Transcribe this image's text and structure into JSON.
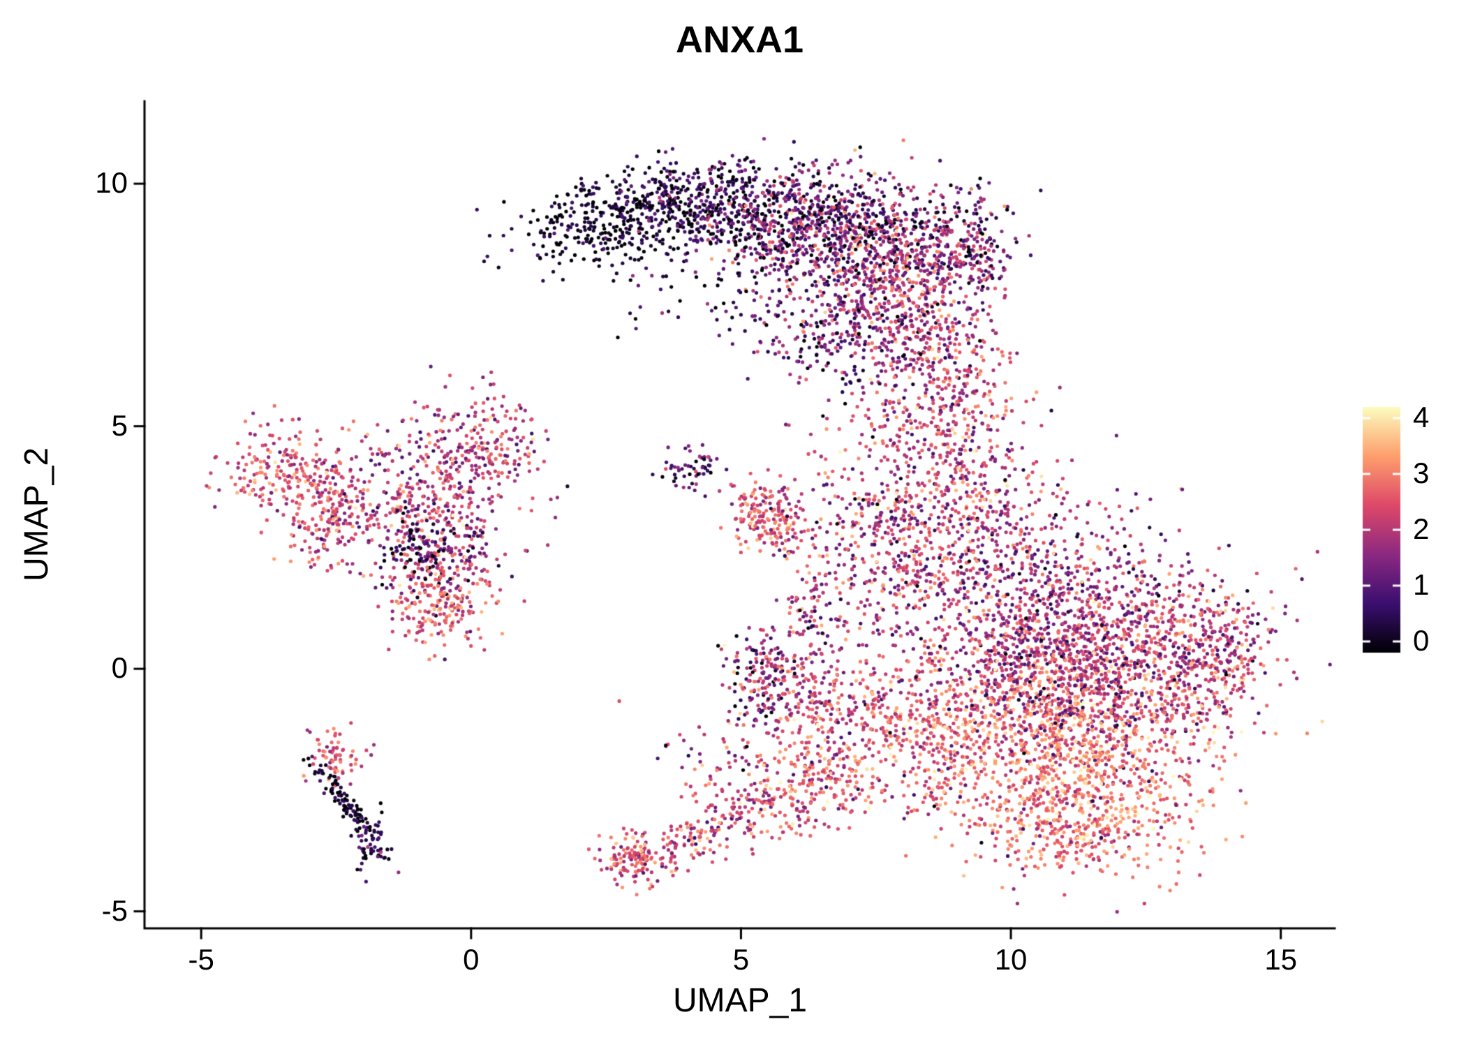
{
  "chart_data": {
    "type": "scatter",
    "title": "ANXA1",
    "xlabel": "UMAP_1",
    "ylabel": "UMAP_2",
    "xlim": [
      -6.05,
      16.0
    ],
    "ylim": [
      -5.35,
      11.7
    ],
    "x_ticks": [
      -5,
      0,
      5,
      10,
      15
    ],
    "y_ticks": [
      -5,
      0,
      5,
      10
    ],
    "grid": false,
    "legend_position": "right",
    "background_color": "#ffffff",
    "axis_color": "#000000",
    "point_color_scale": {
      "name": "magma",
      "stops": [
        "#000004",
        "#3b0f70",
        "#8c2981",
        "#de4968",
        "#fe9f6d",
        "#fcfdbf"
      ]
    },
    "colorbar": {
      "ticks": [
        0,
        1,
        2,
        3,
        4
      ],
      "min_label": 0,
      "max_label": 4
    },
    "expression_range": [
      0,
      4
    ],
    "clusters_schema": [
      "n",
      "cx",
      "cy",
      "sx",
      "sy",
      "rot_deg",
      "expr_mean",
      "expr_sd"
    ],
    "clusters": [
      [
        260,
        2.4,
        9.2,
        0.75,
        0.4,
        15,
        0.25,
        0.35
      ],
      [
        380,
        4.1,
        9.6,
        0.95,
        0.45,
        0,
        0.5,
        0.6
      ],
      [
        520,
        5.9,
        9.3,
        1.0,
        0.55,
        0,
        1.2,
        0.9
      ],
      [
        560,
        7.3,
        8.6,
        0.95,
        0.8,
        0,
        1.8,
        0.9
      ],
      [
        160,
        7.4,
        9.1,
        1.2,
        0.55,
        0,
        0.4,
        0.5
      ],
      [
        420,
        8.3,
        7.5,
        0.7,
        0.9,
        0,
        2.2,
        0.8
      ],
      [
        260,
        7.0,
        6.9,
        0.8,
        0.65,
        0,
        1.5,
        0.9
      ],
      [
        90,
        4.6,
        7.9,
        1.1,
        0.65,
        0,
        0.5,
        0.6
      ],
      [
        130,
        9.25,
        8.7,
        0.35,
        0.55,
        0,
        1.3,
        0.8
      ],
      [
        180,
        -3.5,
        4.1,
        0.5,
        0.45,
        0,
        2.6,
        0.6
      ],
      [
        200,
        -2.6,
        3.2,
        0.45,
        0.55,
        0,
        2.4,
        0.7
      ],
      [
        360,
        -0.8,
        3.6,
        0.85,
        0.8,
        0,
        2.2,
        0.7
      ],
      [
        150,
        0.3,
        4.6,
        0.5,
        0.5,
        0,
        2.3,
        0.7
      ],
      [
        200,
        -0.5,
        2.2,
        0.5,
        0.6,
        0,
        1.8,
        0.9
      ],
      [
        160,
        -0.55,
        1.3,
        0.45,
        0.45,
        0,
        2.8,
        0.6
      ],
      [
        60,
        -1.05,
        2.5,
        0.3,
        0.35,
        0,
        0.5,
        0.5
      ],
      [
        70,
        -2.5,
        -1.8,
        0.3,
        0.3,
        0,
        2.6,
        0.5
      ],
      [
        95,
        -2.3,
        -2.8,
        0.5,
        0.09,
        -56,
        0.3,
        0.3
      ],
      [
        55,
        -1.85,
        -3.6,
        0.16,
        0.28,
        0,
        0.8,
        0.6
      ],
      [
        55,
        4.05,
        4.15,
        0.33,
        0.22,
        0,
        1.0,
        0.7
      ],
      [
        125,
        5.35,
        3.3,
        0.3,
        0.42,
        0,
        2.7,
        0.6
      ],
      [
        65,
        5.75,
        2.85,
        0.3,
        0.3,
        0,
        2.6,
        0.7
      ],
      [
        300,
        8.7,
        4.6,
        0.8,
        0.95,
        0,
        2.5,
        0.7
      ],
      [
        260,
        9.5,
        3.2,
        0.85,
        0.8,
        0,
        2.3,
        0.8
      ],
      [
        260,
        7.9,
        2.0,
        0.7,
        0.9,
        0,
        2.3,
        0.8
      ],
      [
        700,
        10.5,
        1.2,
        1.2,
        0.9,
        0,
        2.1,
        0.8
      ],
      [
        620,
        12.7,
        0.3,
        1.0,
        0.95,
        0,
        2.3,
        0.8
      ],
      [
        700,
        10.8,
        -0.5,
        1.25,
        0.8,
        0,
        2.5,
        0.8
      ],
      [
        820,
        11.2,
        -2.2,
        1.25,
        0.9,
        0,
        3.1,
        0.6
      ],
      [
        160,
        11.0,
        -3.5,
        0.85,
        0.35,
        0,
        3.0,
        0.6
      ],
      [
        360,
        8.6,
        -1.4,
        0.85,
        0.75,
        0,
        2.7,
        0.7
      ],
      [
        130,
        14.0,
        0.3,
        0.4,
        0.55,
        0,
        2.2,
        0.9
      ],
      [
        220,
        10.6,
        0.3,
        1.9,
        1.5,
        0,
        1.0,
        0.5
      ],
      [
        150,
        5.35,
        -0.15,
        0.35,
        0.5,
        0,
        1.7,
        1.0
      ],
      [
        90,
        6.05,
        -0.55,
        0.45,
        0.4,
        0,
        2.4,
        0.8
      ],
      [
        120,
        6.9,
        -0.8,
        0.6,
        0.45,
        0,
        2.5,
        0.7
      ],
      [
        100,
        6.35,
        1.2,
        0.3,
        0.75,
        0,
        2.0,
        0.9
      ],
      [
        90,
        7.2,
        3.2,
        0.65,
        0.6,
        0,
        2.2,
        0.9
      ],
      [
        130,
        3.1,
        -3.9,
        0.38,
        0.3,
        0,
        2.5,
        0.7
      ],
      [
        110,
        4.3,
        -3.45,
        0.7,
        0.22,
        23,
        2.4,
        0.7
      ],
      [
        160,
        5.6,
        -2.8,
        0.8,
        0.4,
        15,
        2.6,
        0.7
      ],
      [
        130,
        6.6,
        -2.2,
        0.55,
        0.45,
        0,
        2.7,
        0.7
      ],
      [
        70,
        5.1,
        -1.8,
        0.8,
        0.5,
        0,
        2.3,
        0.9
      ],
      [
        110,
        9.0,
        5.8,
        0.5,
        0.6,
        0,
        2.4,
        0.8
      ],
      [
        15,
        6.6,
        4.6,
        0.5,
        0.5,
        0,
        2.0,
        1.0
      ]
    ]
  }
}
